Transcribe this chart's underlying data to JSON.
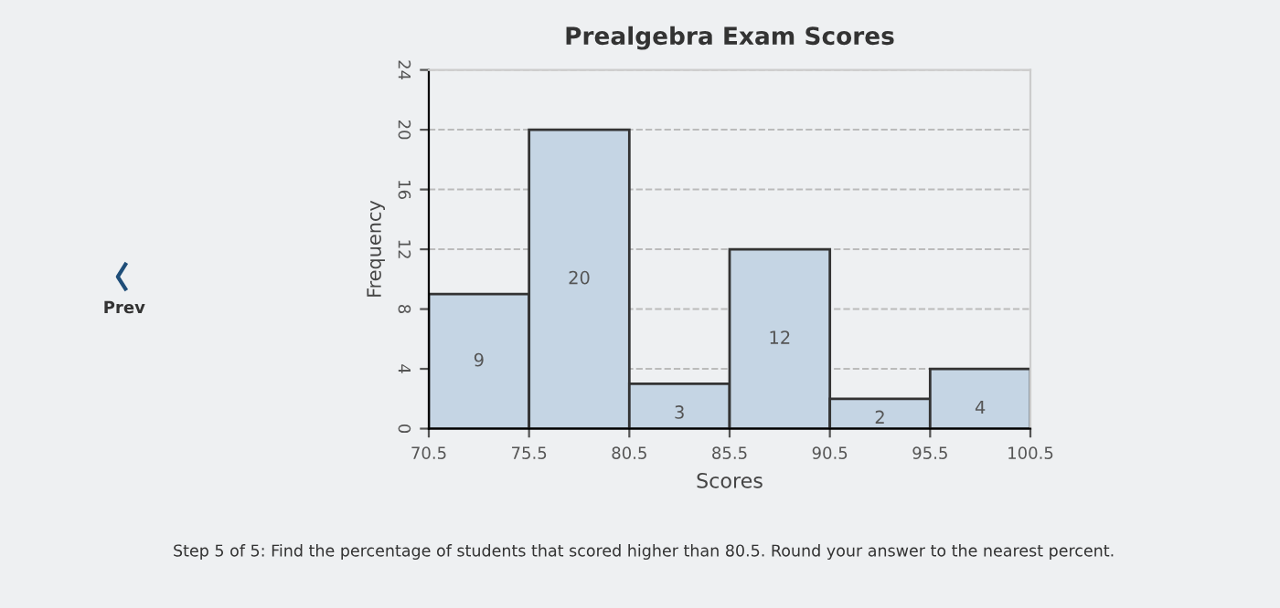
{
  "chart_data": {
    "type": "histogram",
    "title": "Prealgebra Exam Scores",
    "xlabel": "Scores",
    "ylabel": "Frequency",
    "bins": [
      70.5,
      75.5,
      80.5,
      85.5,
      90.5,
      95.5,
      100.5
    ],
    "values": [
      9,
      20,
      3,
      12,
      2,
      4
    ],
    "color": "#c5d5e4",
    "xlim": [
      70.5,
      100.5
    ],
    "xticks": [
      70.5,
      75.5,
      80.5,
      85.5,
      90.5,
      95.5,
      100.5
    ],
    "ylim": [
      0,
      24
    ],
    "yticks": [
      0,
      4,
      8,
      12,
      16,
      20,
      24
    ],
    "grid": "y",
    "data_labels": true,
    "annotations": [
      "Prev",
      "Step 5 of 5: Find the percentage of students that scored higher than 80.5. Round your answer to the nearest percent."
    ]
  }
}
